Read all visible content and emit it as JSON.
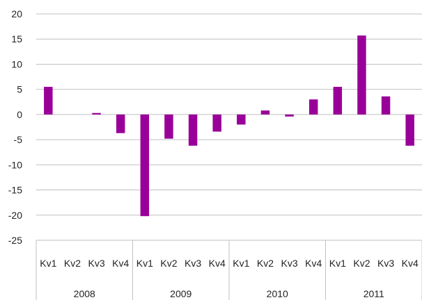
{
  "chart_data": {
    "type": "bar",
    "title": "",
    "xlabel": "",
    "ylabel": "",
    "ylim": [
      -25,
      20
    ],
    "ytick_step": 5,
    "grid": true,
    "legend": "none",
    "bar_color": "#990099",
    "grid_color": "#bfbfbf",
    "groups": [
      {
        "label": "2008",
        "categories": [
          "Kv1",
          "Kv2",
          "Kv3",
          "Kv4"
        ]
      },
      {
        "label": "2009",
        "categories": [
          "Kv1",
          "Kv2",
          "Kv3",
          "Kv4"
        ]
      },
      {
        "label": "2010",
        "categories": [
          "Kv1",
          "Kv2",
          "Kv3",
          "Kv4"
        ]
      },
      {
        "label": "2011",
        "categories": [
          "Kv1",
          "Kv2",
          "Kv3",
          "Kv4"
        ]
      }
    ],
    "values": [
      5.5,
      0,
      0.3,
      -3.7,
      -20.2,
      -4.8,
      -6.2,
      -3.4,
      -2.0,
      0.8,
      -0.4,
      3.0,
      5.5,
      15.7,
      3.6,
      -6.2
    ]
  }
}
